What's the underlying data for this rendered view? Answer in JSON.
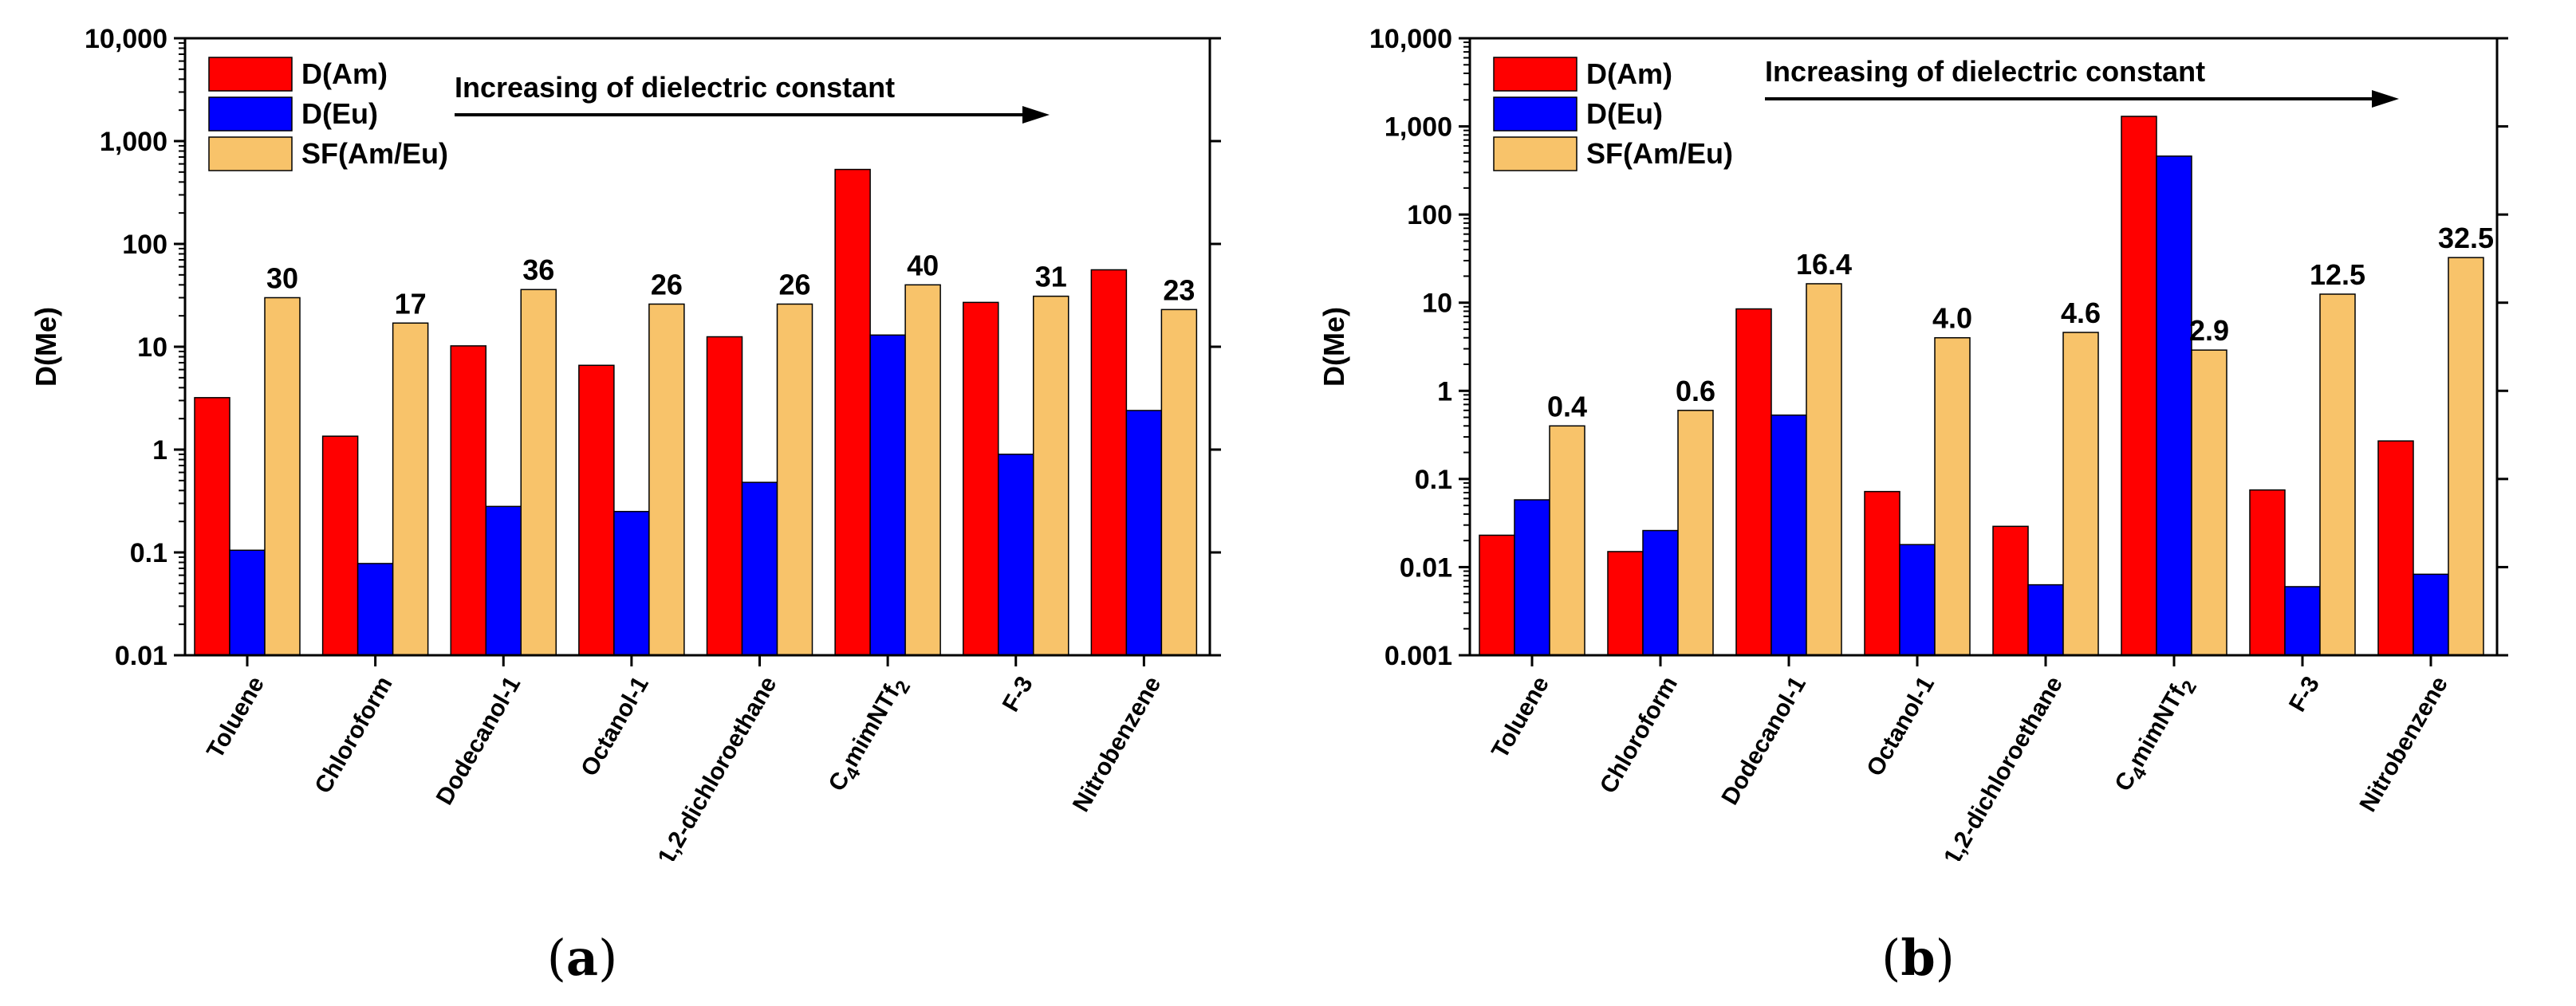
{
  "figure": {
    "caption_a": {
      "open": "(",
      "letter": "a",
      "close": ")"
    },
    "caption_b": {
      "open": "(",
      "letter": "b",
      "close": ")"
    }
  },
  "colors": {
    "d_am": "#ff0000",
    "d_eu": "#0000ff",
    "sf": "#f8c36a",
    "axis": "#000000"
  },
  "chart_data": [
    {
      "type": "bar",
      "panel": "a",
      "scale": "log",
      "ylabel": "D(Me)",
      "xlabel": "",
      "ylim": [
        0.01,
        10000
      ],
      "yticks": [
        "0.01",
        "0.1",
        "1",
        "10",
        "100",
        "1,000",
        "10,000"
      ],
      "categories": [
        "Toluene",
        "Chloroform",
        "Dodecanol-1",
        "Octanol-1",
        "1,2-dichloroethane",
        "C4mimNTf2",
        "F-3",
        "Nitrobenzene"
      ],
      "annotation": "Increasing of dielectric constant",
      "legend_position": "top-left",
      "series": [
        {
          "name": "D(Am)",
          "color": "#ff0000",
          "values": [
            3.2,
            1.35,
            10.2,
            6.6,
            12.5,
            530,
            27,
            56
          ]
        },
        {
          "name": "D(Eu)",
          "color": "#0000ff",
          "values": [
            0.105,
            0.078,
            0.28,
            0.25,
            0.48,
            13,
            0.9,
            2.4
          ]
        },
        {
          "name": "SF(Am/Eu)",
          "color": "#f8c36a",
          "values": [
            30,
            17,
            36,
            26,
            26,
            40,
            31,
            23
          ]
        }
      ],
      "data_labels": [
        "30",
        "17",
        "36",
        "26",
        "26",
        "40",
        "31",
        "23"
      ]
    },
    {
      "type": "bar",
      "panel": "b",
      "scale": "log",
      "ylabel": "D(Me)",
      "xlabel": "",
      "ylim": [
        0.001,
        10000
      ],
      "yticks": [
        "0.001",
        "0.01",
        "0.1",
        "1",
        "10",
        "100",
        "1,000",
        "10,000"
      ],
      "categories": [
        "Toluene",
        "Chloroform",
        "Dodecanol-1",
        "Octanol-1",
        "1,2-dichloroethane",
        "C4mimNTf2",
        "F-3",
        "Nitrobenzene"
      ],
      "annotation": "Increasing of dielectric constant",
      "legend_position": "top-left",
      "series": [
        {
          "name": "D(Am)",
          "color": "#ff0000",
          "values": [
            0.023,
            0.015,
            8.5,
            0.072,
            0.029,
            1300,
            0.075,
            0.27
          ]
        },
        {
          "name": "D(Eu)",
          "color": "#0000ff",
          "values": [
            0.058,
            0.026,
            0.53,
            0.018,
            0.0063,
            460,
            0.006,
            0.0083
          ]
        },
        {
          "name": "SF(Am/Eu)",
          "color": "#f8c36a",
          "values": [
            0.4,
            0.6,
            16.4,
            4.0,
            4.6,
            2.9,
            12.5,
            32.5
          ]
        }
      ],
      "data_labels": [
        "0.4",
        "0.6",
        "16.4",
        "4.0",
        "4.6",
        "2.9",
        "12.5",
        "32.5"
      ]
    }
  ]
}
